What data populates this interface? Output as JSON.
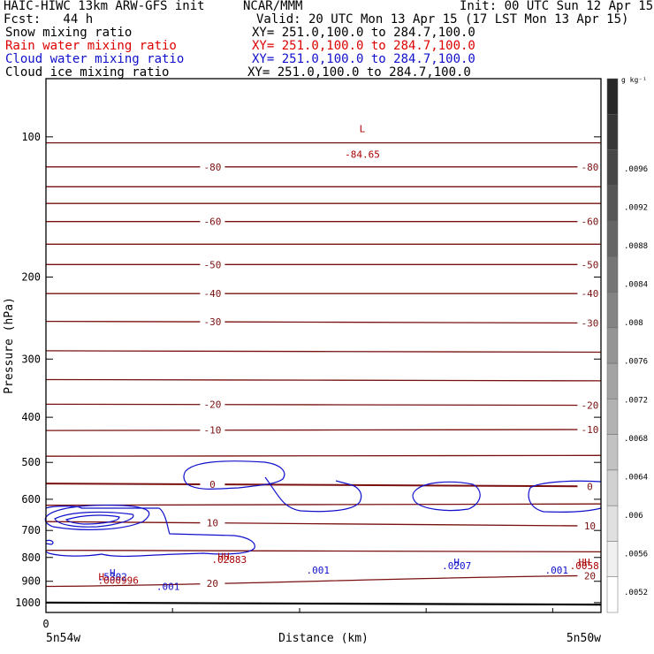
{
  "header": {
    "title": "HAIC-HIWC 13km ARW-GFS init",
    "org": "NCAR/MMM",
    "init": "Init: 00 UTC Sun 12 Apr 15",
    "fcst": "Fcst:   44 h",
    "valid": "Valid: 20 UTC Mon 13 Apr 15 (17 LST Mon 13 Apr 15)",
    "fields": [
      {
        "name": "Snow mixing ratio",
        "xy": "XY= 251.0,100.0 to 284.7,100.0",
        "color": "#000000"
      },
      {
        "name": "Rain water mixing ratio",
        "xy": "XY= 251.0,100.0 to 284.7,100.0",
        "color": "#dd0000"
      },
      {
        "name": "Cloud water mixing ratio",
        "xy": "XY= 251.0,100.0 to 284.7,100.0",
        "color": "#1010cc"
      },
      {
        "name": "Cloud ice mixing ratio",
        "xy": "XY= 251.0,100.0 to 284.7,100.0",
        "color": "#000000"
      }
    ]
  },
  "chart_data": {
    "type": "contour",
    "ylabel": "Pressure (hPa)",
    "xlabel": "Distance (km)",
    "yticks": [
      100,
      200,
      300,
      400,
      500,
      600,
      700,
      800,
      900,
      1000
    ],
    "ylim": [
      1050,
      75
    ],
    "xlim": [
      0,
      1
    ],
    "x_start_label": "0",
    "x_left_label": "5n54w",
    "x_right_label": "5n50w",
    "temperature_contours": [
      {
        "p_left": 103,
        "p_right": 103,
        "label": null
      },
      {
        "p_left": 116,
        "p_right": 116,
        "label": "-80"
      },
      {
        "p_left": 128,
        "p_right": 128,
        "label": null
      },
      {
        "p_left": 139,
        "p_right": 139,
        "label": null
      },
      {
        "p_left": 152,
        "p_right": 152,
        "label": "-60"
      },
      {
        "p_left": 170,
        "p_right": 170,
        "label": null
      },
      {
        "p_left": 188,
        "p_right": 188,
        "label": "-50"
      },
      {
        "p_left": 217,
        "p_right": 217,
        "label": "-40"
      },
      {
        "p_left": 249,
        "p_right": 251,
        "label": "-30"
      },
      {
        "p_left": 288,
        "p_right": 290,
        "label": null
      },
      {
        "p_left": 332,
        "p_right": 334,
        "label": null
      },
      {
        "p_left": 375,
        "p_right": 377,
        "label": "-20"
      },
      {
        "p_left": 427,
        "p_right": 425,
        "label": "-10"
      },
      {
        "p_left": 485,
        "p_right": 483,
        "label": null
      },
      {
        "p_left": 555,
        "p_right": 563,
        "label": "0",
        "bold": true
      },
      {
        "p_left": 618,
        "p_right": 614,
        "label": null
      },
      {
        "p_left": 670,
        "p_right": 685,
        "label": "10"
      },
      {
        "p_left": 772,
        "p_right": 778,
        "label": null
      },
      {
        "p_left": 923,
        "p_right": 875,
        "label": "20"
      },
      {
        "p_left": 1000,
        "p_right": 1010,
        "label": null,
        "ground": true
      }
    ],
    "annotations": [
      {
        "text": "L",
        "x": 0.57,
        "p": 96,
        "color": "#aa0000"
      },
      {
        "text": "-84.65",
        "x": 0.57,
        "p": 109,
        "color": "#aa0000"
      },
      {
        "text": "HH",
        "x": 0.32,
        "p": 795,
        "color": "#aa0000"
      },
      {
        "text": ".02883",
        "x": 0.33,
        "p": 808,
        "color": "#aa0000"
      },
      {
        "text": "H",
        "x": 0.74,
        "p": 818,
        "color": "#1010cc"
      },
      {
        "text": ".0207",
        "x": 0.74,
        "p": 833,
        "color": "#1010cc"
      },
      {
        "text": "HH",
        "x": 0.97,
        "p": 818,
        "color": "#aa0000"
      },
      {
        "text": ".0058",
        "x": 0.97,
        "p": 833,
        "color": "#aa0000"
      },
      {
        "text": ".001",
        "x": 0.49,
        "p": 852,
        "color": "#1010cc"
      },
      {
        "text": ".001",
        "x": 0.92,
        "p": 852,
        "color": "#1010cc"
      },
      {
        "text": "H",
        "x": 0.12,
        "p": 862,
        "color": "#1010cc"
      },
      {
        "text": ".5302",
        "x": 0.12,
        "p": 880,
        "color": "#1010cc"
      },
      {
        "text": "H",
        "x": 0.1,
        "p": 880,
        "color": "#aa0000"
      },
      {
        "text": ".000996",
        "x": 0.13,
        "p": 895,
        "color": "#aa0000"
      },
      {
        "text": ".001",
        "x": 0.22,
        "p": 923,
        "color": "#1010cc"
      }
    ],
    "colorbar": {
      "unit": "g kg⁻¹",
      "labels": [
        ".0052",
        ".0056",
        ".006",
        ".0064",
        ".0068",
        ".0072",
        ".0076",
        ".008",
        ".0084",
        ".0088",
        ".0092",
        ".0096"
      ]
    }
  }
}
